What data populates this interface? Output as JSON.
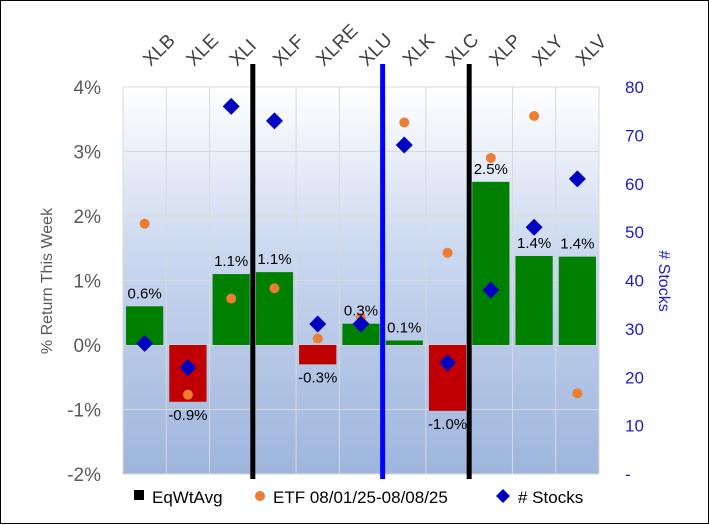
{
  "chart_data": {
    "type": "bar",
    "categories": [
      "XLB",
      "XLE",
      "XLI",
      "XLF",
      "XLRE",
      "XLU",
      "XLK",
      "XLC",
      "XLP",
      "XLY",
      "XLV"
    ],
    "ylabel": "% Return This Week",
    "y2label": "# Stocks",
    "ylim": [
      -2,
      4
    ],
    "y2lim": [
      0,
      80
    ],
    "yticks": [
      "4%",
      "3%",
      "2%",
      "1%",
      "0%",
      "-1%",
      "-2%"
    ],
    "y2ticks": [
      "80",
      "70",
      "60",
      "50",
      "40",
      "30",
      "20",
      "10",
      "-"
    ],
    "series": [
      {
        "name": "EqWtAvg",
        "kind": "bar",
        "values": [
          0.6,
          -0.9,
          1.1,
          1.1,
          -0.3,
          0.3,
          0.1,
          -1.0,
          2.5,
          1.4,
          1.4
        ],
        "exact": [
          0.6,
          -0.88,
          1.1,
          1.13,
          -0.3,
          0.33,
          0.07,
          -1.02,
          2.53,
          1.38,
          1.37
        ],
        "labels": [
          "0.6%",
          "-0.9%",
          "1.1%",
          "1.1%",
          "-0.3%",
          "0.3%",
          "0.1%",
          "-1.0%",
          "2.5%",
          "1.4%",
          "1.4%"
        ]
      },
      {
        "name": "ETF 08/01/25-08/08/25",
        "kind": "dot",
        "values": [
          1.88,
          -0.77,
          0.72,
          0.88,
          0.1,
          0.42,
          3.45,
          1.43,
          2.9,
          3.55,
          -0.75
        ]
      },
      {
        "name": "# Stocks",
        "kind": "diamond",
        "axis": "y2",
        "values": [
          27,
          22,
          76,
          73,
          31,
          31,
          68,
          23,
          38,
          51,
          61
        ]
      }
    ],
    "vertical_lines": [
      {
        "after": "XLI",
        "color": "#000000"
      },
      {
        "after": "XLU",
        "color": "#0000ff"
      },
      {
        "after": "XLC",
        "color": "#000000"
      }
    ],
    "colors": {
      "positive": "#008000",
      "negative": "#c00000",
      "dot": "#ed7d31",
      "diamond": "#0000c0",
      "y2axis": "#1c1cc8"
    }
  }
}
